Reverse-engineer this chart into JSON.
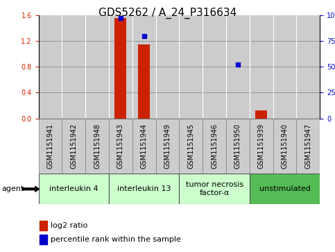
{
  "title": "GDS5262 / A_24_P316634",
  "samples": [
    "GSM1151941",
    "GSM1151942",
    "GSM1151948",
    "GSM1151943",
    "GSM1151944",
    "GSM1151949",
    "GSM1151945",
    "GSM1151946",
    "GSM1151950",
    "GSM1151939",
    "GSM1151940",
    "GSM1151947"
  ],
  "log2_ratio": [
    0,
    0,
    0,
    1.55,
    1.15,
    0,
    0,
    0,
    0,
    0.13,
    0,
    0
  ],
  "percentile_rank": [
    null,
    null,
    null,
    97,
    80,
    null,
    null,
    null,
    52,
    null,
    null,
    null
  ],
  "ylim_left": [
    0,
    1.6
  ],
  "ylim_right": [
    0,
    100
  ],
  "yticks_left": [
    0,
    0.4,
    0.8,
    1.2,
    1.6
  ],
  "yticks_right": [
    0,
    25,
    50,
    75,
    100
  ],
  "ytick_labels_right": [
    "0",
    "25",
    "50",
    "75",
    "100%"
  ],
  "agents": [
    {
      "label": "interleukin 4",
      "start": 0,
      "end": 3,
      "color": "#ccffcc"
    },
    {
      "label": "interleukin 13",
      "start": 3,
      "end": 6,
      "color": "#ccffcc"
    },
    {
      "label": "tumor necrosis\nfactor-α",
      "start": 6,
      "end": 9,
      "color": "#ccffcc"
    },
    {
      "label": "unstimulated",
      "start": 9,
      "end": 12,
      "color": "#55bb55"
    }
  ],
  "bar_color": "#cc2200",
  "dot_color": "#0000cc",
  "sample_bg_color": "#cccccc",
  "plot_bg": "#ffffff",
  "title_fontsize": 11,
  "tick_fontsize": 7,
  "agent_fontsize": 8,
  "label_fontsize": 8
}
